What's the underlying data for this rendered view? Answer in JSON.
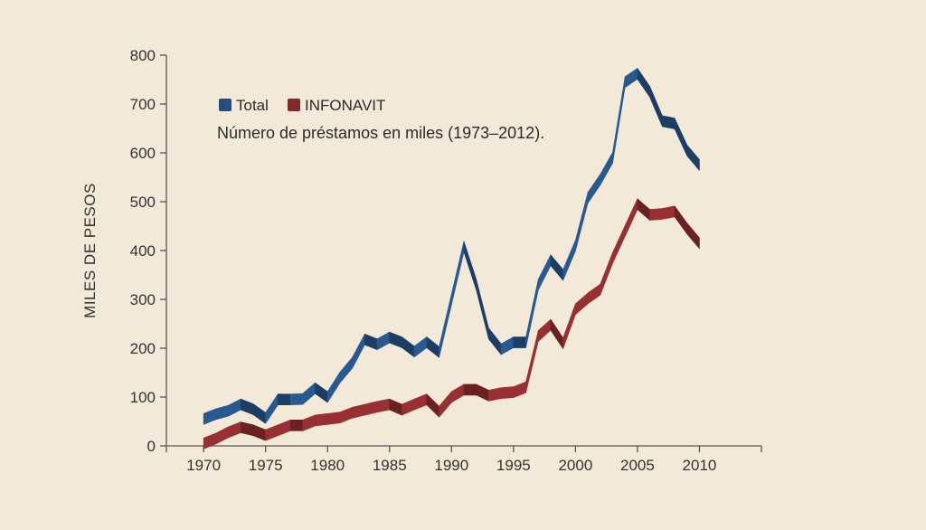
{
  "chart_data": {
    "type": "line",
    "ylabel": "MILES DE PESOS",
    "subtitle": "Número de préstamos en miles (1973–2012).",
    "ylim": [
      0,
      800
    ],
    "xlim": [
      1967,
      2015
    ],
    "yticks": [
      0,
      100,
      200,
      300,
      400,
      500,
      600,
      700,
      800
    ],
    "xtick_labels": [
      1970,
      1975,
      1980,
      1985,
      1990,
      1995,
      2000,
      2005,
      2010
    ],
    "legend_position": "top-left",
    "series": [
      {
        "name": "Total",
        "color": "#234e7e",
        "points": [
          [
            1970,
            55
          ],
          [
            1971,
            65
          ],
          [
            1972,
            72
          ],
          [
            1973,
            85
          ],
          [
            1974,
            75
          ],
          [
            1975,
            57
          ],
          [
            1976,
            95
          ],
          [
            1977,
            95
          ],
          [
            1978,
            96
          ],
          [
            1979,
            118
          ],
          [
            1980,
            100
          ],
          [
            1981,
            140
          ],
          [
            1982,
            170
          ],
          [
            1983,
            218
          ],
          [
            1984,
            208
          ],
          [
            1985,
            222
          ],
          [
            1986,
            212
          ],
          [
            1987,
            193
          ],
          [
            1988,
            212
          ],
          [
            1989,
            192
          ],
          [
            1990,
            300
          ],
          [
            1991,
            408
          ],
          [
            1992,
            330
          ],
          [
            1993,
            230
          ],
          [
            1994,
            198
          ],
          [
            1995,
            212
          ],
          [
            1996,
            212
          ],
          [
            1997,
            330
          ],
          [
            1998,
            380
          ],
          [
            1999,
            350
          ],
          [
            2000,
            410
          ],
          [
            2001,
            508
          ],
          [
            2002,
            545
          ],
          [
            2003,
            590
          ],
          [
            2004,
            745
          ],
          [
            2005,
            762
          ],
          [
            2006,
            725
          ],
          [
            2007,
            665
          ],
          [
            2008,
            660
          ],
          [
            2009,
            605
          ],
          [
            2010,
            575
          ]
        ]
      },
      {
        "name": "INFONAVIT",
        "color": "#84292a",
        "points": [
          [
            1970,
            5
          ],
          [
            1971,
            15
          ],
          [
            1972,
            28
          ],
          [
            1973,
            38
          ],
          [
            1974,
            32
          ],
          [
            1975,
            22
          ],
          [
            1976,
            32
          ],
          [
            1977,
            42
          ],
          [
            1978,
            42
          ],
          [
            1979,
            52
          ],
          [
            1980,
            55
          ],
          [
            1981,
            58
          ],
          [
            1982,
            68
          ],
          [
            1983,
            74
          ],
          [
            1984,
            80
          ],
          [
            1985,
            85
          ],
          [
            1986,
            74
          ],
          [
            1987,
            85
          ],
          [
            1988,
            95
          ],
          [
            1989,
            70
          ],
          [
            1990,
            100
          ],
          [
            1991,
            115
          ],
          [
            1992,
            115
          ],
          [
            1993,
            103
          ],
          [
            1994,
            108
          ],
          [
            1995,
            110
          ],
          [
            1996,
            120
          ],
          [
            1997,
            225
          ],
          [
            1998,
            248
          ],
          [
            1999,
            210
          ],
          [
            2000,
            280
          ],
          [
            2001,
            302
          ],
          [
            2002,
            320
          ],
          [
            2003,
            385
          ],
          [
            2004,
            440
          ],
          [
            2005,
            495
          ],
          [
            2006,
            473
          ],
          [
            2007,
            475
          ],
          [
            2008,
            480
          ],
          [
            2009,
            445
          ],
          [
            2010,
            415
          ]
        ]
      }
    ]
  }
}
